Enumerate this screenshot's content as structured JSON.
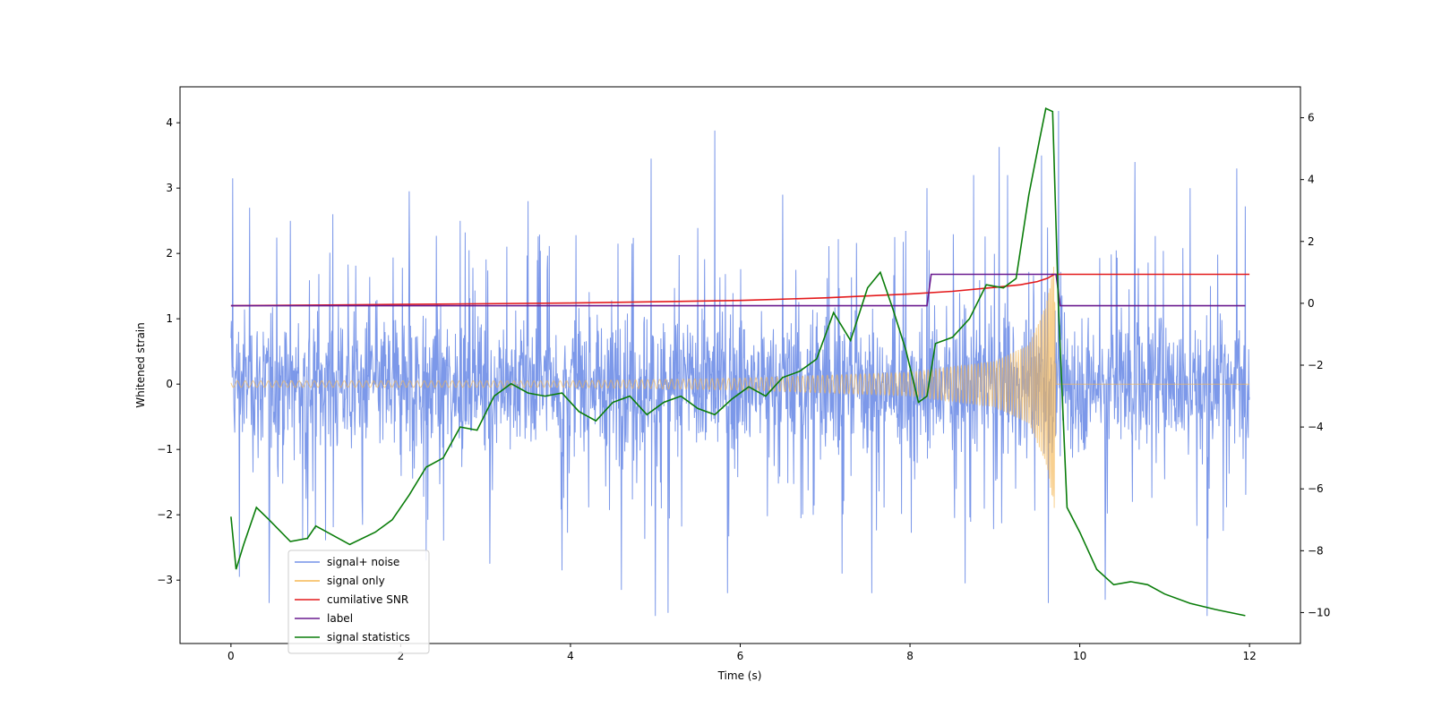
{
  "chart_data": {
    "type": "line",
    "xlabel": "Time (s)",
    "ylabel": "Whitened strain",
    "xlim": [
      -0.6,
      12.6
    ],
    "ylim": [
      -3.97,
      4.55
    ],
    "y2lim": [
      -11.0,
      7.0
    ],
    "x_ticks": [
      0,
      2,
      4,
      6,
      8,
      10,
      12
    ],
    "y_ticks": [
      -3,
      -2,
      -1,
      0,
      1,
      2,
      3,
      4
    ],
    "y2_ticks": [
      -10,
      -8,
      -6,
      -4,
      -2,
      0,
      2,
      4,
      6
    ],
    "grid": false,
    "legend_position": "lower-left",
    "series": [
      {
        "name": "signal+ noise",
        "axis": "left",
        "color": "#7592e8",
        "description_stats": {
          "x_start": 0,
          "x_end": 12,
          "typical_envelope": [
            -1.6,
            1.9
          ],
          "max": 4.18,
          "min": -3.55
        },
        "spikes": [
          [
            0.02,
            3.15
          ],
          [
            0.1,
            -2.95
          ],
          [
            0.22,
            2.7
          ],
          [
            0.45,
            -3.35
          ],
          [
            0.7,
            2.5
          ],
          [
            1.2,
            2.6
          ],
          [
            2.1,
            2.95
          ],
          [
            2.3,
            -2.7
          ],
          [
            2.7,
            2.5
          ],
          [
            3.05,
            -2.75
          ],
          [
            3.5,
            2.8
          ],
          [
            3.9,
            -2.85
          ],
          [
            4.6,
            -3.15
          ],
          [
            4.95,
            3.45
          ],
          [
            5.0,
            -3.55
          ],
          [
            5.15,
            -3.5
          ],
          [
            5.7,
            3.88
          ],
          [
            5.85,
            -3.2
          ],
          [
            6.5,
            2.9
          ],
          [
            7.2,
            -2.9
          ],
          [
            7.55,
            -3.2
          ],
          [
            8.2,
            3.0
          ],
          [
            8.65,
            -3.05
          ],
          [
            8.75,
            3.2
          ],
          [
            9.05,
            3.63
          ],
          [
            9.15,
            3.2
          ],
          [
            9.55,
            3.5
          ],
          [
            9.63,
            -3.35
          ],
          [
            9.75,
            4.18
          ],
          [
            10.3,
            -3.3
          ],
          [
            10.65,
            3.4
          ],
          [
            11.3,
            3.0
          ],
          [
            11.5,
            -3.55
          ],
          [
            11.85,
            3.3
          ],
          [
            11.95,
            2.72
          ]
        ]
      },
      {
        "name": "signal only",
        "axis": "left",
        "color": "#f5b754",
        "amplitude_envelope": [
          [
            0,
            0.05
          ],
          [
            4,
            0.05
          ],
          [
            6,
            0.09
          ],
          [
            8,
            0.18
          ],
          [
            9,
            0.35
          ],
          [
            9.4,
            0.6
          ],
          [
            9.6,
            1.2
          ],
          [
            9.7,
            1.9
          ],
          [
            9.72,
            0
          ]
        ]
      },
      {
        "name": "cumilative SNR",
        "axis": "left",
        "color": "#e41a1c",
        "x": [
          0,
          2,
          4,
          6,
          7,
          8,
          8.5,
          9,
          9.3,
          9.5,
          9.62,
          9.7,
          12
        ],
        "values": [
          1.2,
          1.22,
          1.24,
          1.28,
          1.32,
          1.38,
          1.42,
          1.48,
          1.52,
          1.57,
          1.62,
          1.68,
          1.68
        ]
      },
      {
        "name": "label",
        "axis": "left",
        "color": "#6a1b8f",
        "x": [
          0,
          8.2,
          8.25,
          9.72,
          9.77,
          11.95
        ],
        "values": [
          1.2,
          1.2,
          1.68,
          1.68,
          1.2,
          1.2
        ]
      },
      {
        "name": "signal statistics",
        "axis": "right",
        "color": "#0a7d0a",
        "x": [
          0,
          0.06,
          0.15,
          0.3,
          0.45,
          0.7,
          0.9,
          1.0,
          1.2,
          1.4,
          1.7,
          1.9,
          2.1,
          2.3,
          2.5,
          2.7,
          2.9,
          3.1,
          3.3,
          3.5,
          3.7,
          3.9,
          4.1,
          4.3,
          4.5,
          4.7,
          4.9,
          5.1,
          5.3,
          5.5,
          5.7,
          5.9,
          6.1,
          6.3,
          6.5,
          6.7,
          6.9,
          7.1,
          7.3,
          7.5,
          7.65,
          7.8,
          7.95,
          8.1,
          8.2,
          8.3,
          8.5,
          8.7,
          8.9,
          9.1,
          9.25,
          9.4,
          9.52,
          9.6,
          9.68,
          9.75,
          9.85,
          10.0,
          10.2,
          10.4,
          10.6,
          10.8,
          11.0,
          11.3,
          11.6,
          11.95
        ],
        "values": [
          -6.9,
          -8.6,
          -7.8,
          -6.6,
          -7.0,
          -7.7,
          -7.6,
          -7.2,
          -7.5,
          -7.8,
          -7.4,
          -7.0,
          -6.2,
          -5.3,
          -5.0,
          -4.0,
          -4.1,
          -3.0,
          -2.6,
          -2.9,
          -3.0,
          -2.9,
          -3.5,
          -3.8,
          -3.2,
          -3.0,
          -3.6,
          -3.2,
          -3.0,
          -3.4,
          -3.6,
          -3.1,
          -2.7,
          -3.0,
          -2.4,
          -2.2,
          -1.8,
          -0.3,
          -1.2,
          0.5,
          1.0,
          -0.2,
          -1.5,
          -3.2,
          -3.0,
          -1.3,
          -1.1,
          -0.5,
          0.6,
          0.5,
          0.8,
          3.5,
          5.2,
          6.3,
          6.2,
          -0.2,
          -6.6,
          -7.4,
          -8.6,
          -9.1,
          -9.0,
          -9.1,
          -9.4,
          -9.7,
          -9.9,
          -10.1
        ]
      }
    ]
  },
  "legend": {
    "entries": [
      {
        "label": "signal+ noise",
        "color": "#7592e8"
      },
      {
        "label": "signal only",
        "color": "#f5b754"
      },
      {
        "label": "cumilative SNR",
        "color": "#e41a1c"
      },
      {
        "label": "label",
        "color": "#6a1b8f"
      },
      {
        "label": "signal statistics",
        "color": "#0a7d0a"
      }
    ]
  }
}
